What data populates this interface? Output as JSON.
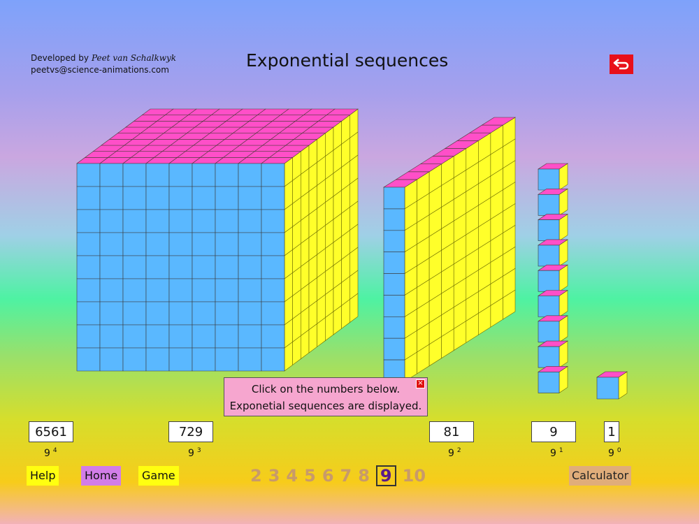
{
  "credit": {
    "developed_by": "Developed by",
    "author": "Peet van Schalkwyk",
    "email": "peetvs@science-animations.com"
  },
  "title": "Exponential sequences",
  "back_button": {
    "icon": "return-arrow-icon"
  },
  "message": {
    "line1": "Click on the numbers below.",
    "line2": "Exponetial sequences are displayed.",
    "close_icon": "close-icon"
  },
  "base": 9,
  "values": [
    {
      "value": "6561",
      "base": "9",
      "exp": "4"
    },
    {
      "value": "729",
      "base": "9",
      "exp": "3"
    },
    {
      "value": "81",
      "base": "9",
      "exp": "2"
    },
    {
      "value": "9",
      "base": "9",
      "exp": "1"
    },
    {
      "value": "1",
      "base": "9",
      "exp": "0"
    }
  ],
  "nav": {
    "help": "Help",
    "home": "Home",
    "game": "Game",
    "calculator": "Calculator"
  },
  "numbers": [
    "2",
    "3",
    "4",
    "5",
    "6",
    "7",
    "8",
    "9",
    "10"
  ],
  "selected_number": "9",
  "colors": {
    "top": "#ff4fc8",
    "front": "#5ab8ff",
    "side": "#ffff2a"
  }
}
